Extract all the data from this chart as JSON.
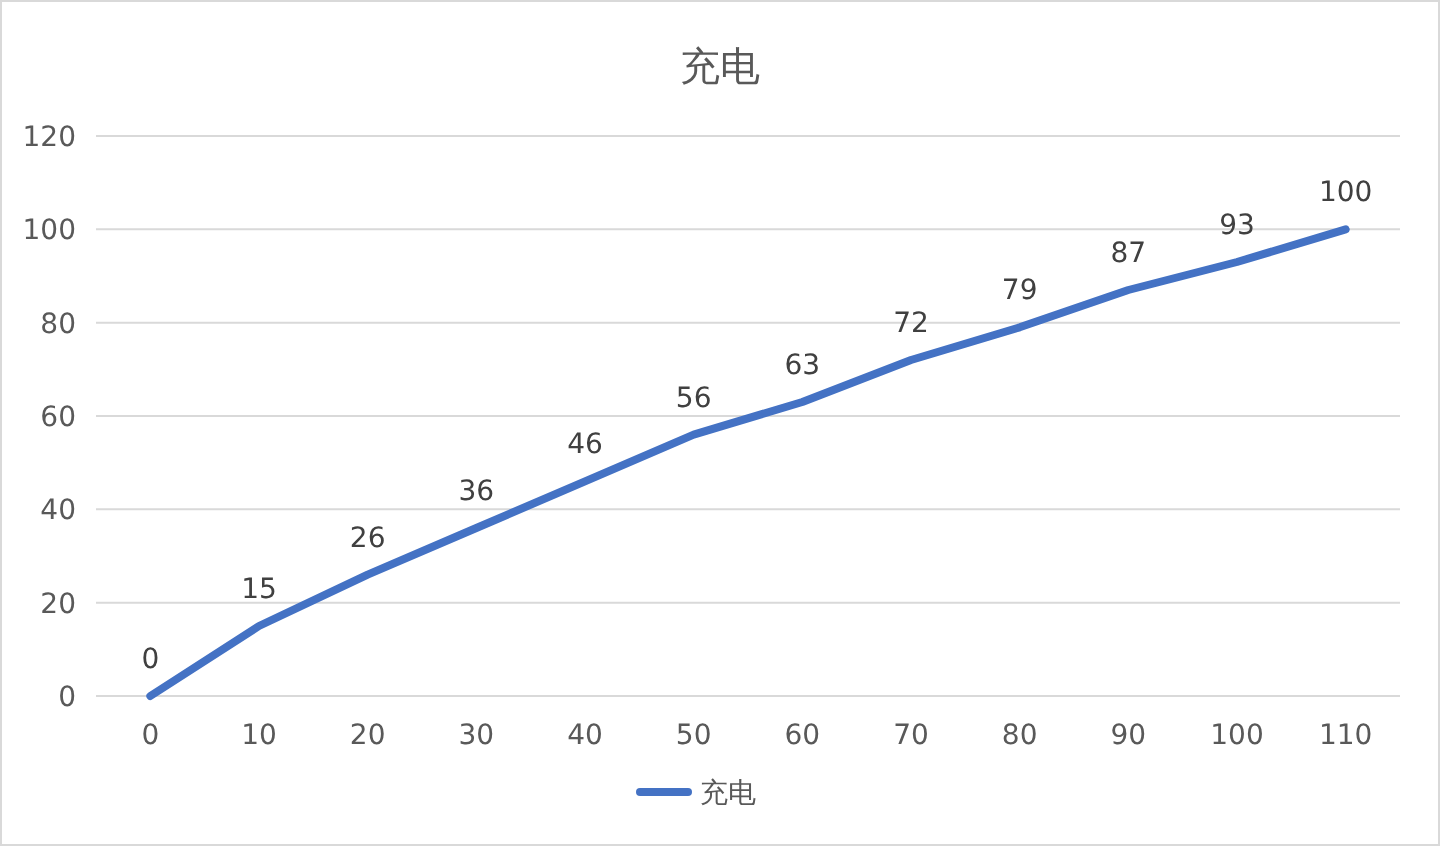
{
  "chart_data": {
    "type": "line",
    "title": "充电",
    "categories": [
      "0",
      "10",
      "20",
      "30",
      "40",
      "50",
      "60",
      "70",
      "80",
      "90",
      "100",
      "110"
    ],
    "series": [
      {
        "name": "充电",
        "color": "#4472c4",
        "values": [
          0,
          15,
          26,
          36,
          46,
          56,
          63,
          72,
          79,
          87,
          93,
          100
        ]
      }
    ],
    "ylim": [
      0,
      120
    ],
    "yticks": [
      0,
      20,
      40,
      60,
      80,
      100,
      120
    ],
    "grid": "y",
    "legend": "bottom",
    "data_labels": true
  }
}
